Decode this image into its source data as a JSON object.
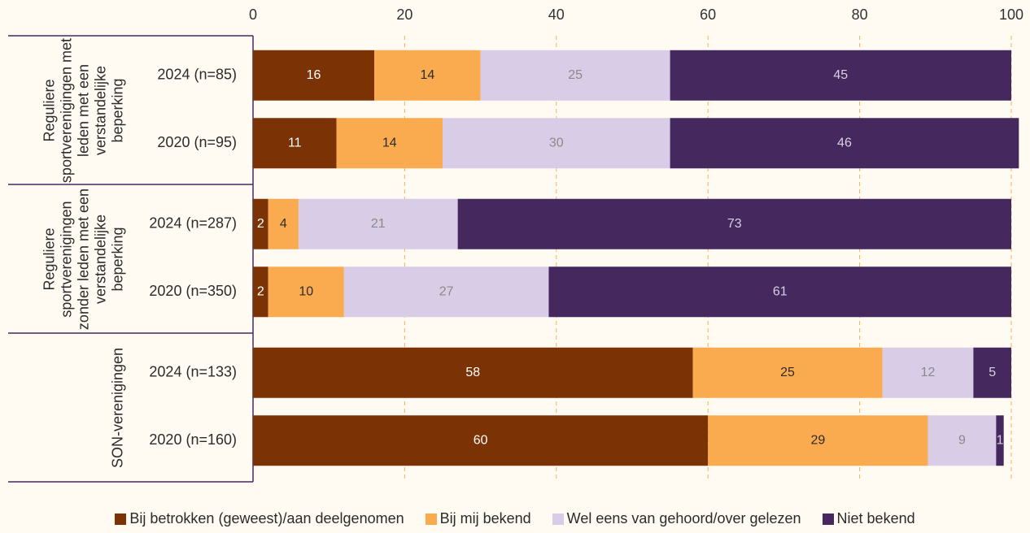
{
  "chart_data": {
    "type": "stacked_bar_horizontal",
    "groups": [
      "Reguliere sportverenigingen met leden met een verstandelijke beperking",
      "Reguliere sportverenigingen zonder leden met een verstandelijke beperking",
      "SON-verenigingen"
    ],
    "categories": [
      "2024 (n=85)",
      "2020 (n=95)",
      "2024 (n=287)",
      "2020 (n=350)",
      "2024 (n=133)",
      "2020 (n=160)"
    ],
    "series": [
      {
        "name": "Bij betrokken (geweest)/aan deelgenomen",
        "color": "#7b3306",
        "values": [
          16,
          11,
          2,
          2,
          58,
          60
        ]
      },
      {
        "name": "Bij mij bekend",
        "color": "#fbab4f",
        "values": [
          14,
          14,
          4,
          10,
          25,
          29
        ]
      },
      {
        "name": "Wel eens van gehoord/over gelezen",
        "color": "#d9cce6",
        "values": [
          25,
          30,
          21,
          27,
          12,
          9
        ]
      },
      {
        "name": "Niet bekend",
        "color": "#45295e",
        "values": [
          45,
          46,
          73,
          61,
          5,
          1
        ]
      }
    ],
    "xlim": [
      0,
      100
    ],
    "xticks": [
      0,
      20,
      40,
      60,
      80,
      100
    ],
    "grid": true,
    "legend": "bottom"
  }
}
